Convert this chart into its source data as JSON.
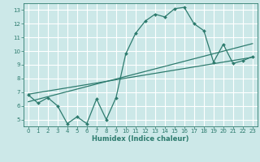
{
  "xlabel": "Humidex (Indice chaleur)",
  "bg_color": "#cce8e8",
  "grid_color": "#ffffff",
  "line_color": "#2d7b6e",
  "xlim": [
    -0.5,
    23.5
  ],
  "ylim": [
    4.5,
    13.5
  ],
  "xticks": [
    0,
    1,
    2,
    3,
    4,
    5,
    6,
    7,
    8,
    9,
    10,
    11,
    12,
    13,
    14,
    15,
    16,
    17,
    18,
    19,
    20,
    21,
    22,
    23
  ],
  "yticks": [
    5,
    6,
    7,
    8,
    9,
    10,
    11,
    12,
    13
  ],
  "main_x": [
    0,
    1,
    2,
    3,
    4,
    5,
    6,
    7,
    8,
    9,
    10,
    11,
    12,
    13,
    14,
    15,
    16,
    17,
    18,
    19,
    20,
    21,
    22,
    23
  ],
  "main_y": [
    6.8,
    6.2,
    6.6,
    6.0,
    4.7,
    5.2,
    4.7,
    6.5,
    5.0,
    6.6,
    9.8,
    11.3,
    12.2,
    12.7,
    12.5,
    13.1,
    13.2,
    12.0,
    11.5,
    9.2,
    10.5,
    9.1,
    9.3,
    9.6
  ],
  "trend1_x": [
    0,
    23
  ],
  "trend1_y": [
    6.3,
    10.55
  ],
  "trend2_x": [
    0,
    23
  ],
  "trend2_y": [
    6.85,
    9.55
  ],
  "xlabel_fontsize": 6.0,
  "tick_fontsize": 5.0
}
